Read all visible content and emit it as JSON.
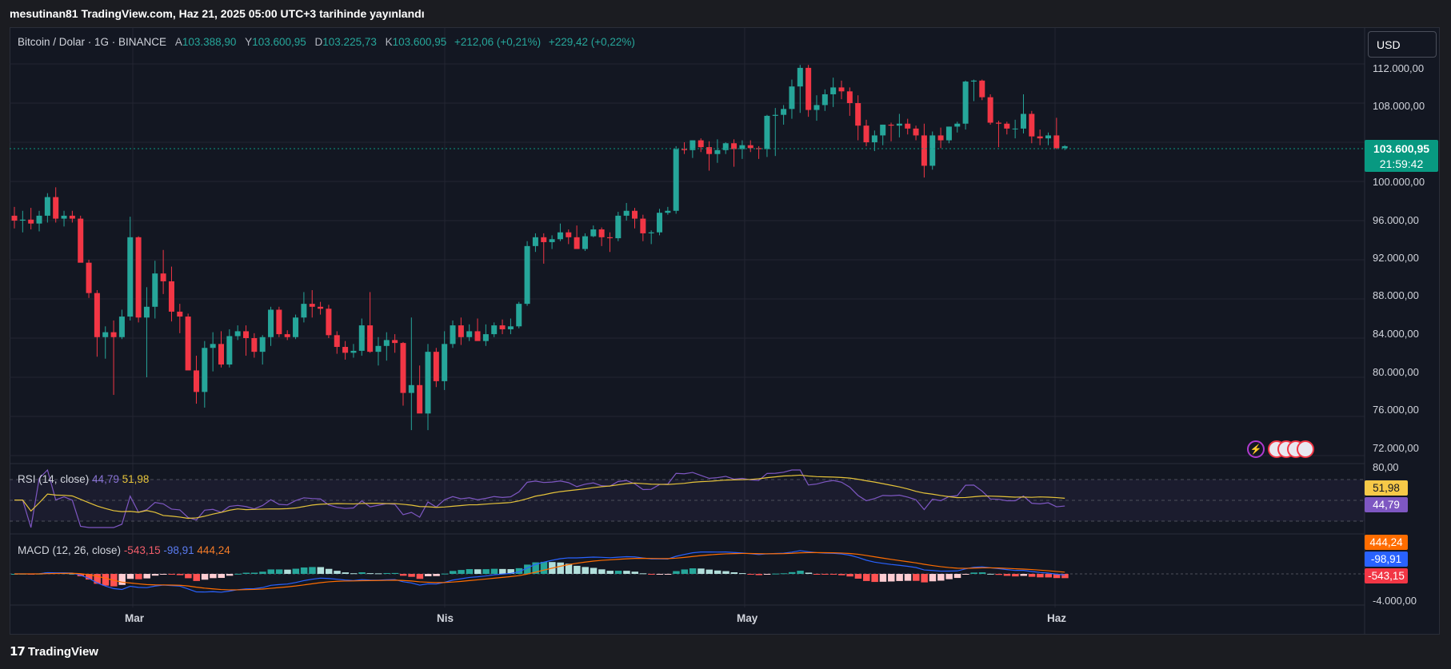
{
  "header": {
    "publish_line": "mesutinan81 TradingView.com, Haz 21, 2025 05:00 UTC+3 tarihinde yayınlandı"
  },
  "legend": {
    "symbol": "Bitcoin / Dolar · 1G · BINANCE",
    "open_label": "A",
    "open": "103.388,90",
    "high_label": "Y",
    "high": "103.600,95",
    "low_label": "D",
    "low": "103.225,73",
    "close_label": "K",
    "close": "103.600,95",
    "change": "+212,06 (+0,21%)",
    "change2": "+229,42 (+0,22%)"
  },
  "currency_button": "USD",
  "last_price": {
    "value": "103.600,95",
    "countdown": "21:59:42"
  },
  "price_axis": [
    "112.000,00",
    "108.000,00",
    "100.000,00",
    "96.000,00",
    "92.000,00",
    "88.000,00",
    "84.000,00",
    "80.000,00",
    "76.000,00",
    "72.000,00"
  ],
  "rsi": {
    "title": "RSI (14, close)",
    "rsi_value": "44,79",
    "ma_value": "51,98",
    "axis_top": "80,00"
  },
  "macd": {
    "title": "MACD (12, 26, close)",
    "hist_value": "-543,15",
    "macd_value": "-98,91",
    "signal_value": "444,24",
    "axis_bottom": "-4.000,00"
  },
  "time_axis": [
    "Mar",
    "Nis",
    "May",
    "Haz"
  ],
  "branding": "TradingView",
  "colors": {
    "up": "#26a69a",
    "down": "#f23645",
    "rsi": "#7e57c2",
    "rsi_ma": "#e5c33a",
    "macd": "#2962ff",
    "signal": "#ff6d00",
    "background": "#131722"
  },
  "chart_data": {
    "type": "candlestick",
    "x_labels": [
      "Mar",
      "Nis",
      "May",
      "Haz"
    ],
    "ylim": [
      70000,
      114000
    ],
    "candles": [
      {
        "o": 96500,
        "h": 97400,
        "l": 95200,
        "c": 96000
      },
      {
        "o": 96000,
        "h": 97000,
        "l": 94800,
        "c": 96100
      },
      {
        "o": 96100,
        "h": 97300,
        "l": 95100,
        "c": 95700
      },
      {
        "o": 95700,
        "h": 97000,
        "l": 94900,
        "c": 96500
      },
      {
        "o": 96500,
        "h": 98800,
        "l": 95800,
        "c": 98400
      },
      {
        "o": 98400,
        "h": 99400,
        "l": 95800,
        "c": 96200
      },
      {
        "o": 96200,
        "h": 97000,
        "l": 95400,
        "c": 96500
      },
      {
        "o": 96500,
        "h": 97000,
        "l": 95800,
        "c": 96200
      },
      {
        "o": 96200,
        "h": 96500,
        "l": 91800,
        "c": 91700
      },
      {
        "o": 91700,
        "h": 92000,
        "l": 88100,
        "c": 88600
      },
      {
        "o": 88600,
        "h": 88900,
        "l": 82100,
        "c": 84100
      },
      {
        "o": 84100,
        "h": 85200,
        "l": 81900,
        "c": 84600
      },
      {
        "o": 84600,
        "h": 85800,
        "l": 78200,
        "c": 84100
      },
      {
        "o": 84100,
        "h": 86900,
        "l": 83900,
        "c": 86200
      },
      {
        "o": 86200,
        "h": 96400,
        "l": 85800,
        "c": 94300
      },
      {
        "o": 94300,
        "h": 94400,
        "l": 85600,
        "c": 86100
      },
      {
        "o": 86100,
        "h": 89200,
        "l": 80000,
        "c": 87200
      },
      {
        "o": 87200,
        "h": 91900,
        "l": 86000,
        "c": 90600
      },
      {
        "o": 90600,
        "h": 93000,
        "l": 88500,
        "c": 89800
      },
      {
        "o": 89800,
        "h": 91300,
        "l": 85700,
        "c": 86700
      },
      {
        "o": 86700,
        "h": 87500,
        "l": 84500,
        "c": 86200
      },
      {
        "o": 86200,
        "h": 86500,
        "l": 80800,
        "c": 80700
      },
      {
        "o": 80700,
        "h": 82200,
        "l": 77300,
        "c": 78500
      },
      {
        "o": 78500,
        "h": 83700,
        "l": 76900,
        "c": 83000
      },
      {
        "o": 83000,
        "h": 84600,
        "l": 80600,
        "c": 83400
      },
      {
        "o": 83400,
        "h": 84700,
        "l": 81000,
        "c": 81300
      },
      {
        "o": 81300,
        "h": 84900,
        "l": 81000,
        "c": 84200
      },
      {
        "o": 84200,
        "h": 85300,
        "l": 83800,
        "c": 84700
      },
      {
        "o": 84700,
        "h": 85300,
        "l": 82200,
        "c": 84000
      },
      {
        "o": 84000,
        "h": 84500,
        "l": 82000,
        "c": 82600
      },
      {
        "o": 82600,
        "h": 84300,
        "l": 81300,
        "c": 84100
      },
      {
        "o": 84100,
        "h": 87200,
        "l": 83200,
        "c": 86900
      },
      {
        "o": 86900,
        "h": 87200,
        "l": 84100,
        "c": 84400
      },
      {
        "o": 84400,
        "h": 84800,
        "l": 83800,
        "c": 84100
      },
      {
        "o": 84100,
        "h": 86400,
        "l": 83900,
        "c": 86100
      },
      {
        "o": 86100,
        "h": 88700,
        "l": 85600,
        "c": 87500
      },
      {
        "o": 87500,
        "h": 88900,
        "l": 86100,
        "c": 87200
      },
      {
        "o": 87200,
        "h": 87700,
        "l": 86400,
        "c": 87000
      },
      {
        "o": 87000,
        "h": 87400,
        "l": 84000,
        "c": 84300
      },
      {
        "o": 84300,
        "h": 84700,
        "l": 82400,
        "c": 83100
      },
      {
        "o": 83100,
        "h": 83700,
        "l": 81800,
        "c": 82500
      },
      {
        "o": 82500,
        "h": 83400,
        "l": 82000,
        "c": 82700
      },
      {
        "o": 82700,
        "h": 86000,
        "l": 82200,
        "c": 85300
      },
      {
        "o": 85300,
        "h": 88700,
        "l": 82500,
        "c": 82600
      },
      {
        "o": 82600,
        "h": 84100,
        "l": 81200,
        "c": 83200
      },
      {
        "o": 83200,
        "h": 84600,
        "l": 81700,
        "c": 83800
      },
      {
        "o": 83800,
        "h": 84400,
        "l": 82500,
        "c": 83500
      },
      {
        "o": 83500,
        "h": 83600,
        "l": 77100,
        "c": 78400
      },
      {
        "o": 78400,
        "h": 86100,
        "l": 74600,
        "c": 79200
      },
      {
        "o": 79200,
        "h": 81200,
        "l": 76500,
        "c": 76300
      },
      {
        "o": 76300,
        "h": 83400,
        "l": 74600,
        "c": 82600
      },
      {
        "o": 82600,
        "h": 83000,
        "l": 79000,
        "c": 79600
      },
      {
        "o": 79600,
        "h": 84700,
        "l": 78700,
        "c": 83400
      },
      {
        "o": 83400,
        "h": 85800,
        "l": 83000,
        "c": 85300
      },
      {
        "o": 85300,
        "h": 86100,
        "l": 83300,
        "c": 84100
      },
      {
        "o": 84100,
        "h": 85400,
        "l": 83700,
        "c": 84700
      },
      {
        "o": 84700,
        "h": 86000,
        "l": 83800,
        "c": 83700
      },
      {
        "o": 83700,
        "h": 85400,
        "l": 83200,
        "c": 84400
      },
      {
        "o": 84400,
        "h": 85600,
        "l": 84100,
        "c": 85300
      },
      {
        "o": 85300,
        "h": 85900,
        "l": 84400,
        "c": 84900
      },
      {
        "o": 84900,
        "h": 86000,
        "l": 84400,
        "c": 85200
      },
      {
        "o": 85200,
        "h": 87700,
        "l": 85000,
        "c": 87500
      },
      {
        "o": 87500,
        "h": 93900,
        "l": 87300,
        "c": 93400
      },
      {
        "o": 93400,
        "h": 94700,
        "l": 92800,
        "c": 94300
      },
      {
        "o": 94300,
        "h": 94700,
        "l": 91600,
        "c": 93800
      },
      {
        "o": 93800,
        "h": 94500,
        "l": 93100,
        "c": 94100
      },
      {
        "o": 94100,
        "h": 95700,
        "l": 93900,
        "c": 94800
      },
      {
        "o": 94800,
        "h": 95100,
        "l": 93600,
        "c": 94300
      },
      {
        "o": 94300,
        "h": 95500,
        "l": 93200,
        "c": 93100
      },
      {
        "o": 93100,
        "h": 94700,
        "l": 92900,
        "c": 94400
      },
      {
        "o": 94400,
        "h": 95500,
        "l": 94300,
        "c": 95100
      },
      {
        "o": 95100,
        "h": 95300,
        "l": 93400,
        "c": 94300
      },
      {
        "o": 94300,
        "h": 94800,
        "l": 92800,
        "c": 94200
      },
      {
        "o": 94200,
        "h": 96900,
        "l": 93900,
        "c": 96500
      },
      {
        "o": 96500,
        "h": 97800,
        "l": 96000,
        "c": 97000
      },
      {
        "o": 97000,
        "h": 97300,
        "l": 95200,
        "c": 96200
      },
      {
        "o": 96200,
        "h": 96600,
        "l": 93900,
        "c": 94700
      },
      {
        "o": 94700,
        "h": 95000,
        "l": 93600,
        "c": 94800
      },
      {
        "o": 94800,
        "h": 97200,
        "l": 94500,
        "c": 96800
      },
      {
        "o": 96800,
        "h": 97400,
        "l": 96600,
        "c": 97000
      },
      {
        "o": 97000,
        "h": 103600,
        "l": 96700,
        "c": 103300
      },
      {
        "o": 103300,
        "h": 104000,
        "l": 102800,
        "c": 103200
      },
      {
        "o": 103200,
        "h": 104200,
        "l": 102400,
        "c": 104200
      },
      {
        "o": 104200,
        "h": 104400,
        "l": 103000,
        "c": 103500
      },
      {
        "o": 103500,
        "h": 104100,
        "l": 101100,
        "c": 102800
      },
      {
        "o": 102800,
        "h": 104300,
        "l": 101900,
        "c": 103200
      },
      {
        "o": 103200,
        "h": 104000,
        "l": 102800,
        "c": 103900
      },
      {
        "o": 103900,
        "h": 104300,
        "l": 101500,
        "c": 103300
      },
      {
        "o": 103300,
        "h": 104200,
        "l": 102300,
        "c": 103700
      },
      {
        "o": 103700,
        "h": 104200,
        "l": 103000,
        "c": 103400
      },
      {
        "o": 103400,
        "h": 103600,
        "l": 102300,
        "c": 103300
      },
      {
        "o": 103300,
        "h": 106800,
        "l": 102500,
        "c": 106700
      },
      {
        "o": 106700,
        "h": 107500,
        "l": 102600,
        "c": 106800
      },
      {
        "o": 106800,
        "h": 107800,
        "l": 105800,
        "c": 107400
      },
      {
        "o": 107400,
        "h": 110400,
        "l": 106400,
        "c": 109700
      },
      {
        "o": 109700,
        "h": 111900,
        "l": 107000,
        "c": 111600
      },
      {
        "o": 111600,
        "h": 111900,
        "l": 106600,
        "c": 107300
      },
      {
        "o": 107300,
        "h": 108800,
        "l": 106200,
        "c": 107800
      },
      {
        "o": 107800,
        "h": 109400,
        "l": 107200,
        "c": 108900
      },
      {
        "o": 108900,
        "h": 110600,
        "l": 107600,
        "c": 109600
      },
      {
        "o": 109600,
        "h": 110300,
        "l": 108400,
        "c": 109200
      },
      {
        "o": 109200,
        "h": 109600,
        "l": 106700,
        "c": 108000
      },
      {
        "o": 108000,
        "h": 108800,
        "l": 104200,
        "c": 105700
      },
      {
        "o": 105700,
        "h": 106300,
        "l": 103600,
        "c": 104000
      },
      {
        "o": 104000,
        "h": 105200,
        "l": 103100,
        "c": 104700
      },
      {
        "o": 104700,
        "h": 105800,
        "l": 103700,
        "c": 105800
      },
      {
        "o": 105800,
        "h": 106000,
        "l": 104100,
        "c": 105700
      },
      {
        "o": 105700,
        "h": 106900,
        "l": 104500,
        "c": 105900
      },
      {
        "o": 105900,
        "h": 106400,
        "l": 104800,
        "c": 105400
      },
      {
        "o": 105400,
        "h": 105700,
        "l": 104200,
        "c": 104700
      },
      {
        "o": 104700,
        "h": 105900,
        "l": 100400,
        "c": 101600
      },
      {
        "o": 101600,
        "h": 105100,
        "l": 101200,
        "c": 104700
      },
      {
        "o": 104700,
        "h": 105500,
        "l": 103400,
        "c": 104200
      },
      {
        "o": 104200,
        "h": 105600,
        "l": 103900,
        "c": 105600
      },
      {
        "o": 105600,
        "h": 106100,
        "l": 105000,
        "c": 105900
      },
      {
        "o": 105900,
        "h": 110300,
        "l": 105300,
        "c": 110200
      },
      {
        "o": 110200,
        "h": 110400,
        "l": 108200,
        "c": 110300
      },
      {
        "o": 110300,
        "h": 110400,
        "l": 108300,
        "c": 108600
      },
      {
        "o": 108600,
        "h": 108900,
        "l": 105800,
        "c": 106000
      },
      {
        "o": 106000,
        "h": 106200,
        "l": 103500,
        "c": 105900
      },
      {
        "o": 105900,
        "h": 106100,
        "l": 104800,
        "c": 105400
      },
      {
        "o": 105400,
        "h": 106300,
        "l": 104400,
        "c": 105400
      },
      {
        "o": 105400,
        "h": 108900,
        "l": 104900,
        "c": 106900
      },
      {
        "o": 106900,
        "h": 107200,
        "l": 103900,
        "c": 104600
      },
      {
        "o": 104600,
        "h": 105300,
        "l": 103700,
        "c": 104400
      },
      {
        "o": 104400,
        "h": 105000,
        "l": 103700,
        "c": 104700
      },
      {
        "o": 104700,
        "h": 106500,
        "l": 103300,
        "c": 103400
      },
      {
        "o": 103400,
        "h": 103700,
        "l": 103200,
        "c": 103600
      }
    ]
  }
}
